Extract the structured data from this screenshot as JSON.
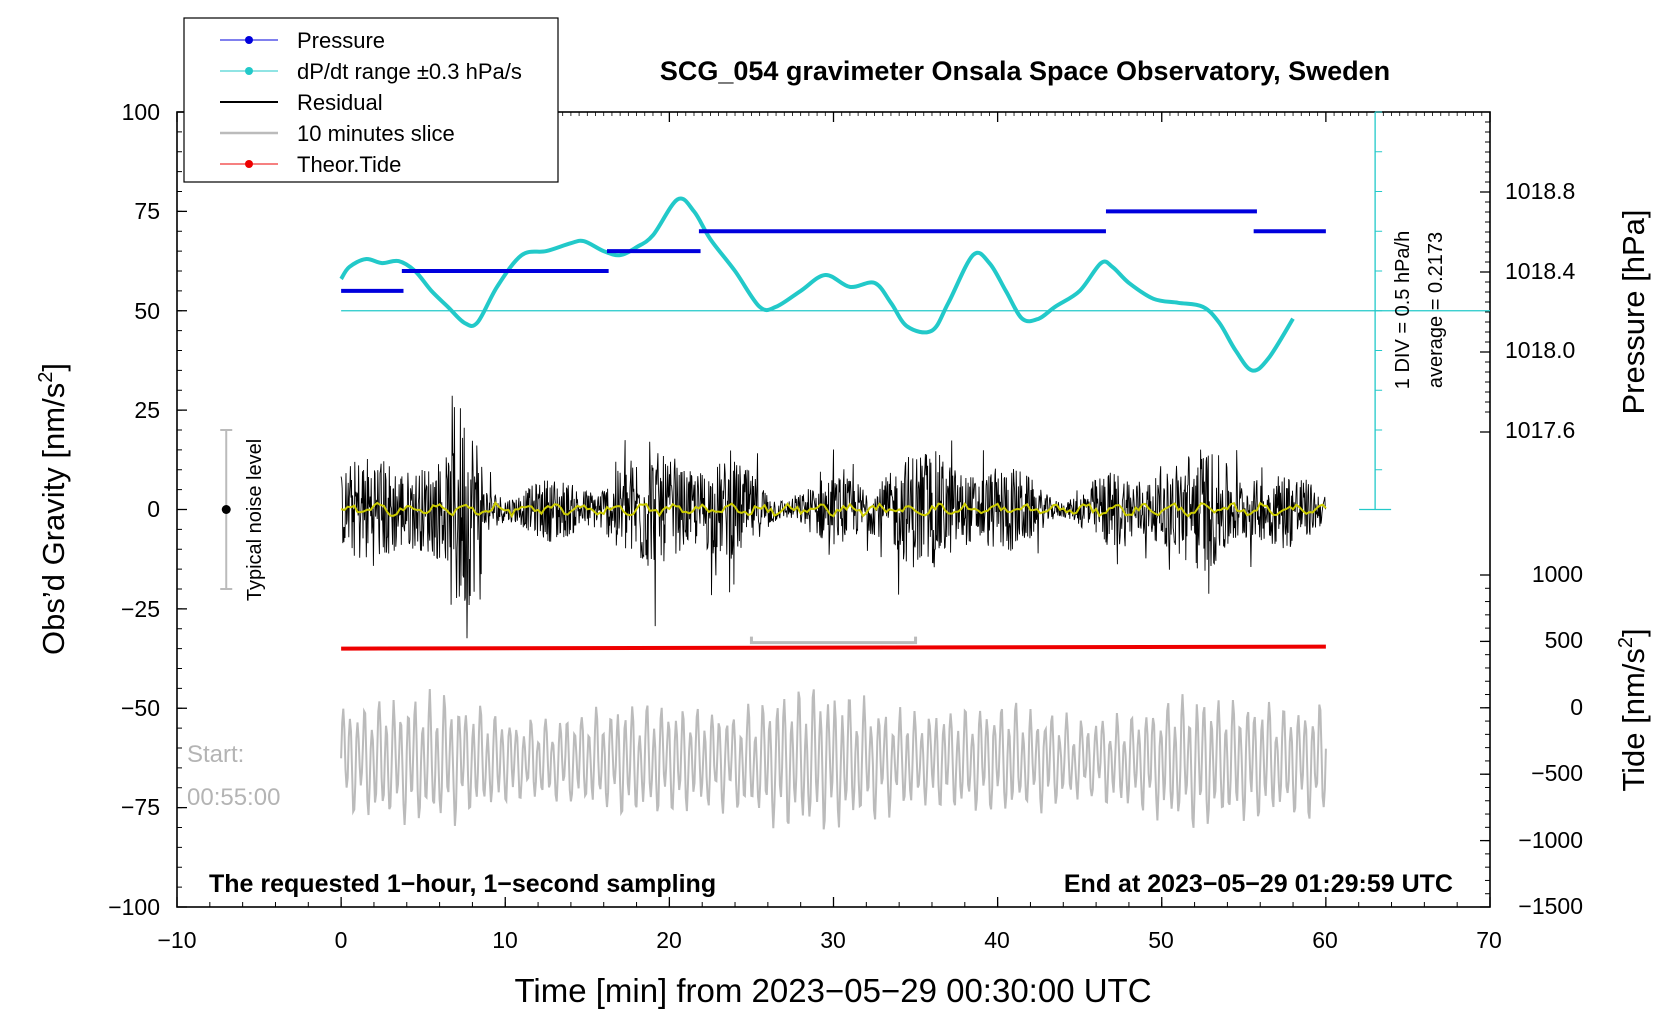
{
  "chart_data": {
    "type": "line",
    "title": "SCG_054 gravimeter Onsala Space Observatory, Sweden",
    "xlabel": "Time [min] from 2023−05−29 00:30:00 UTC",
    "ylabel_left": "Obs’d Gravity [nm/s²]",
    "ylabel_left_text": "Obs’d Gravity [nm/s",
    "ylabel_left_sup": "2",
    "ylabel_left_end": "]",
    "ylabel_right_pressure": "Pressure [hPa]",
    "ylabel_right_tide": "Tide [nm/s²]",
    "ylabel_right_tide_text": "Tide [nm/s",
    "ylabel_right_tide_sup": "2",
    "ylabel_right_tide_end": "]",
    "xlim": [
      -10,
      70
    ],
    "ylim_left": [
      -100,
      100
    ],
    "ylim_pressure": [
      1017.6,
      1018.8
    ],
    "ylim_tide": [
      -1500,
      1000
    ],
    "x_ticks": [
      "−10",
      "0",
      "10",
      "20",
      "30",
      "40",
      "50",
      "60",
      "70"
    ],
    "y_ticks_left": [
      "100",
      "75",
      "50",
      "25",
      "0",
      "−25",
      "−50",
      "−75",
      "−100"
    ],
    "y_ticks_pressure": [
      "1018.8",
      "1018.4",
      "1018.0",
      "1017.6"
    ],
    "y_ticks_tide": [
      "1000",
      "500",
      "0",
      "−500",
      "−1000",
      "−1500"
    ],
    "legend": [
      "Pressure",
      "dP/dt range ±0.3 hPa/s",
      "Residual",
      "10 minutes slice",
      "Theor.Tide"
    ],
    "legend_position": "top-left",
    "annotations": {
      "noise_label": "Typical noise level",
      "start_label": "Start:",
      "start_time": "00:55:00",
      "bottom_left": "The requested 1−hour, 1−second sampling",
      "bottom_right": "End at 2023−05−29 01:29:59 UTC",
      "scale_div": "1 DIV = 0.5 hPa/h",
      "scale_avg": "average = 0.2173"
    },
    "series": [
      {
        "name": "Pressure",
        "unit": "hPa",
        "steps": [
          {
            "x0": 0,
            "x1": 3.8,
            "y": 55
          },
          {
            "x0": 3.7,
            "x1": 16.3,
            "y": 60
          },
          {
            "x0": 16.2,
            "x1": 21.9,
            "y": 65
          },
          {
            "x0": 21.8,
            "x1": 46.6,
            "y": 70
          },
          {
            "x0": 46.6,
            "x1": 55.8,
            "y": 75
          },
          {
            "x0": 55.6,
            "x1": 60.0,
            "y": 70
          }
        ]
      },
      {
        "name": "dP/dt range ±0.3 hPa/s",
        "baseline": 50,
        "points": [
          [
            0,
            58
          ],
          [
            0.5,
            61
          ],
          [
            1.5,
            63
          ],
          [
            2.5,
            62
          ],
          [
            3.5,
            62.5
          ],
          [
            4.5,
            60
          ],
          [
            5.5,
            55
          ],
          [
            6.5,
            51
          ],
          [
            7.5,
            47
          ],
          [
            8.3,
            47
          ],
          [
            9.5,
            56
          ],
          [
            11,
            64
          ],
          [
            12.5,
            65
          ],
          [
            14,
            67
          ],
          [
            14.8,
            67.5
          ],
          [
            16,
            65
          ],
          [
            17,
            64
          ],
          [
            18,
            66
          ],
          [
            19,
            69
          ],
          [
            20.5,
            78
          ],
          [
            21.5,
            75
          ],
          [
            22.5,
            68
          ],
          [
            24,
            60
          ],
          [
            25.5,
            51
          ],
          [
            26.5,
            51
          ],
          [
            28,
            55
          ],
          [
            29.5,
            59
          ],
          [
            31,
            56
          ],
          [
            32.5,
            57
          ],
          [
            33.5,
            52
          ],
          [
            34.5,
            46
          ],
          [
            36,
            45
          ],
          [
            37,
            52
          ],
          [
            38.5,
            64
          ],
          [
            39.5,
            62
          ],
          [
            40.5,
            55
          ],
          [
            41.5,
            48
          ],
          [
            42.5,
            48
          ],
          [
            43.5,
            51
          ],
          [
            45,
            55
          ],
          [
            46.3,
            62
          ],
          [
            47,
            61
          ],
          [
            48,
            57
          ],
          [
            49.5,
            53
          ],
          [
            51,
            52
          ],
          [
            52.5,
            51
          ],
          [
            53.5,
            47
          ],
          [
            54.5,
            40
          ],
          [
            55.5,
            35
          ],
          [
            56.5,
            38
          ],
          [
            58,
            48
          ]
        ]
      },
      {
        "name": "Residual",
        "range_min": -40,
        "range_max": 33,
        "mean_line_color": "#d6d600"
      },
      {
        "name": "10 minutes slice",
        "x_start": 25,
        "x_end": 35,
        "amplitude_nm_s2": 900
      },
      {
        "name": "Theor.Tide",
        "points": [
          [
            0,
            -35
          ],
          [
            60,
            -34.5
          ]
        ]
      }
    ],
    "noise_bar": {
      "x": -7,
      "y_min": -20,
      "y_max": 20
    },
    "colors": {
      "pressure": "#0000dd",
      "dpdt": "#22c9c9",
      "residual": "#000000",
      "slice": "#bbbbbb",
      "tide": "#ee0000",
      "residual_mean": "#cccc00"
    }
  }
}
